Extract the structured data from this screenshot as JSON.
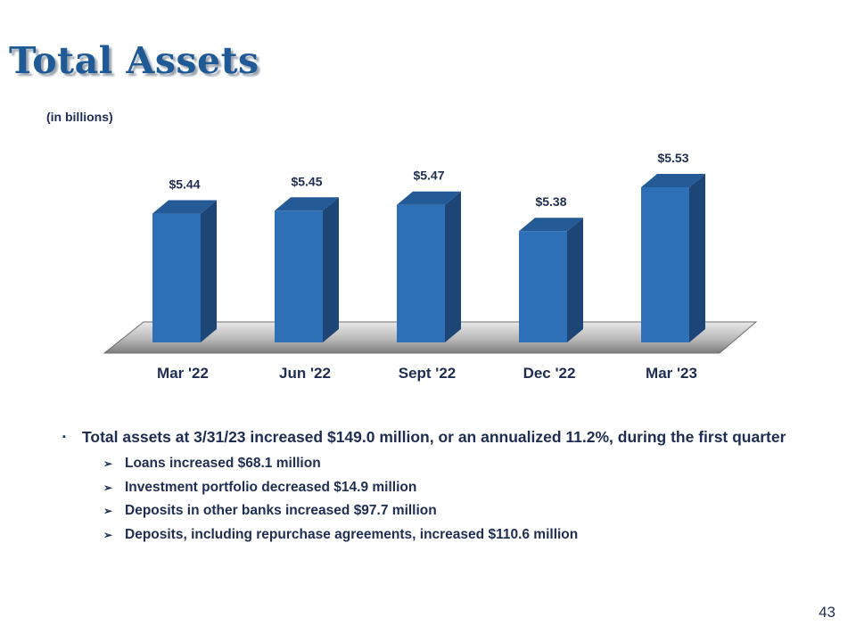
{
  "slide": {
    "title": "Total Assets",
    "units_note": "(in billions)",
    "page_number": "43"
  },
  "chart_data": {
    "type": "bar",
    "style": "3d",
    "categories": [
      "Mar '22",
      "Jun '22",
      "Sept '22",
      "Dec '22",
      "Mar '23"
    ],
    "values": [
      5.44,
      5.45,
      5.47,
      5.38,
      5.53
    ],
    "data_labels": [
      "$5.44",
      "$5.45",
      "$5.47",
      "$5.38",
      "$5.53"
    ],
    "title": "",
    "xlabel": "",
    "ylabel": "",
    "bar_color": "#2e70b8",
    "bar_side_color": "#1d4575",
    "bar_top_color": "#245a96",
    "floor_color": "#a6a6a6",
    "label_color": "#1f2d52",
    "grid": false,
    "legend": "none"
  },
  "bullets": {
    "marker": "▪",
    "main": "Total assets at 3/31/23 increased $149.0 million, or an annualized 11.2%, during the first quarter",
    "sub_marker": "➢",
    "sub_items": [
      "Loans increased $68.1 million",
      "Investment portfolio decreased $14.9 million",
      "Deposits in other banks increased $97.7 million",
      "Deposits, including repurchase agreements, increased $110.6 million"
    ]
  }
}
